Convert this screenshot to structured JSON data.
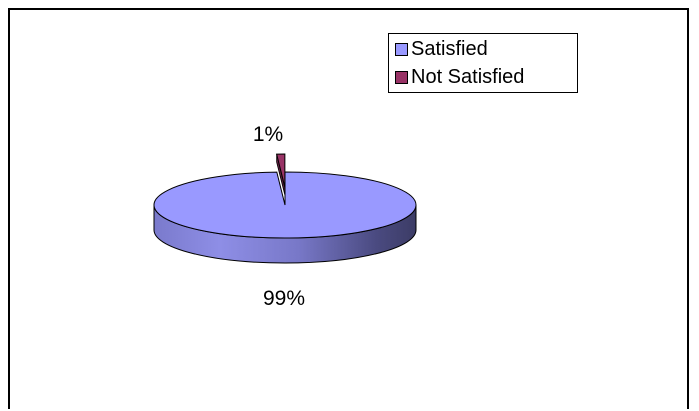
{
  "chart_data": {
    "type": "pie",
    "style": "3d",
    "categories": [
      "Satisfied",
      "Not Satisfied"
    ],
    "values": [
      99,
      1
    ],
    "data_labels": [
      "99%",
      "1%"
    ],
    "colors": [
      "#9999ff",
      "#993366"
    ],
    "legend": {
      "placement": "top-right",
      "entries": [
        "Satisfied",
        "Not Satisfied"
      ]
    },
    "title": ""
  }
}
